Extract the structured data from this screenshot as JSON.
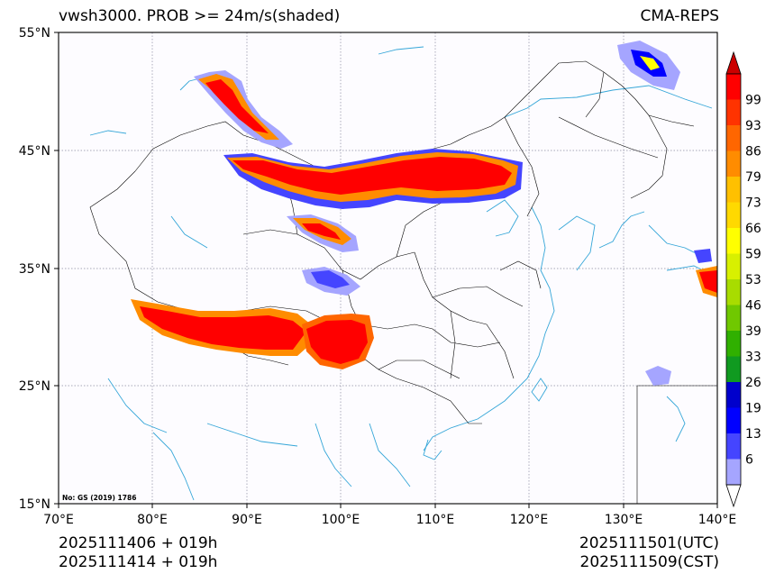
{
  "title": {
    "left": "vwsh3000. PROB >= 24m/s(shaded)",
    "right": "CMA-REPS"
  },
  "axes": {
    "lat_labels": [
      "55°N",
      "45°N",
      "35°N",
      "25°N",
      "15°N"
    ],
    "lon_labels": [
      "70°E",
      "80°E",
      "90°E",
      "100°E",
      "110°E",
      "120°E",
      "130°E",
      "140°E"
    ],
    "lat_range": [
      15,
      55
    ],
    "lon_range": [
      70,
      140
    ]
  },
  "colorbar": {
    "labels": [
      "99",
      "93",
      "86",
      "79",
      "73",
      "66",
      "59",
      "53",
      "46",
      "39",
      "33",
      "26",
      "19",
      "13",
      "6"
    ],
    "colors": [
      "#ff0000",
      "#ff3300",
      "#ff6600",
      "#ff8c00",
      "#ffc000",
      "#ffd900",
      "#ffff00",
      "#d8f000",
      "#a8dc00",
      "#70c800",
      "#30b000",
      "#109a20",
      "#0000cc",
      "#0000ff",
      "#4545ff",
      "#a5a5ff"
    ],
    "top_tip_color": "#cc0000"
  },
  "map_colors": {
    "coast": "#35a6d8",
    "border": "#000000"
  },
  "footer": {
    "left_line1": "2025111406  +  019h",
    "left_line2": "2025111414  +  019h",
    "right_line1": "2025111501(UTC)",
    "right_line2": "2025111509(CST)"
  },
  "watermark": "No: GS (2019) 1786"
}
